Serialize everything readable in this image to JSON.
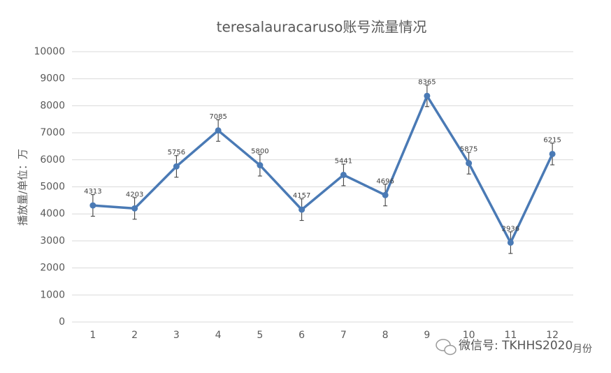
{
  "chart_data": {
    "type": "line",
    "title": "teresalauracaruso账号流量情况",
    "y_label": "播放量/单位：万",
    "x_label": "月份",
    "watermark": "微信号: TKHHS2020",
    "categories": [
      "1",
      "2",
      "3",
      "4",
      "5",
      "6",
      "7",
      "8",
      "9",
      "10",
      "11",
      "12"
    ],
    "values": [
      4313,
      4203,
      5756,
      7085,
      5800,
      4157,
      5441,
      4696,
      8365,
      5875,
      2936,
      6215
    ],
    "errors": [
      400,
      400,
      400,
      400,
      400,
      400,
      400,
      400,
      400,
      400,
      400,
      400
    ],
    "color": "#4a7ab5",
    "ylim": [
      0,
      10000
    ],
    "yticks": [
      0,
      1000,
      2000,
      3000,
      4000,
      5000,
      6000,
      7000,
      8000,
      9000,
      10000
    ],
    "grid": true
  }
}
